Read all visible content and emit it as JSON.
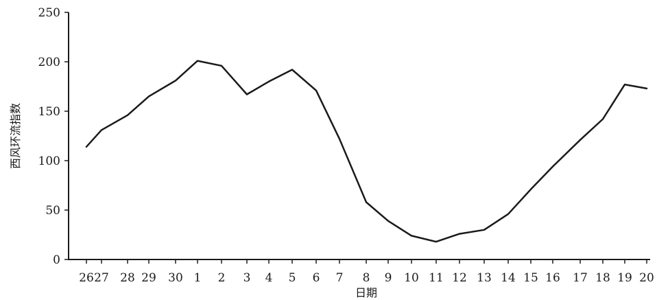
{
  "chart_data": {
    "type": "line",
    "title": "",
    "xlabel": "日期",
    "ylabel": "西风环流指数",
    "ylim": [
      0,
      250
    ],
    "yticks": [
      0,
      50,
      100,
      150,
      200,
      250
    ],
    "categories": [
      "26",
      "27",
      "28",
      "29",
      "30",
      "1",
      "2",
      "3",
      "4",
      "5",
      "6",
      "7",
      "8",
      "9",
      "10",
      "11",
      "12",
      "13",
      "14",
      "15",
      "16",
      "17",
      "18",
      "19",
      "20"
    ],
    "grid": false,
    "legend": "none",
    "colors": {
      "line": "#1a1a1a",
      "axis": "#1a1a1a"
    },
    "series": [
      {
        "points": [
          [
            26,
            114
          ],
          [
            27,
            131
          ],
          [
            28,
            146
          ],
          [
            29,
            165
          ],
          [
            30,
            181
          ],
          [
            1,
            201
          ],
          [
            2,
            196
          ],
          [
            3,
            167
          ],
          [
            4,
            180
          ],
          [
            5,
            192
          ],
          [
            6,
            171
          ],
          [
            7,
            122
          ],
          [
            8,
            58
          ],
          [
            9,
            39
          ],
          [
            10,
            24
          ],
          [
            11,
            18
          ],
          [
            12,
            26
          ],
          [
            13,
            30
          ],
          [
            14,
            46
          ],
          [
            15,
            71
          ],
          [
            16,
            94
          ],
          [
            17,
            121
          ],
          [
            18,
            142
          ],
          [
            19,
            177
          ],
          [
            20,
            173
          ]
        ]
      }
    ]
  }
}
